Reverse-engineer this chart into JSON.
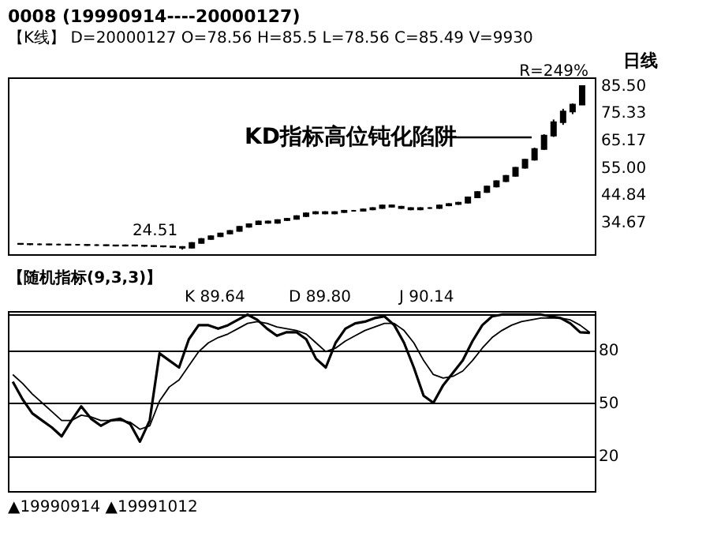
{
  "chart_data": [
    {
      "type": "candlestick",
      "title": "0008    (19990914----20000127)",
      "subtitle": "【K线】 D=20000127  O=78.56  H=85.5  L=78.56  C=85.49  V=9930",
      "annotations": [
        "日线",
        "R=249%",
        "KD指标高位钝化陷阱",
        "24.51"
      ],
      "categories": [
        null,
        null,
        null,
        null,
        null,
        null,
        null,
        null,
        null,
        null,
        null,
        null,
        null,
        null,
        null,
        null,
        null,
        null,
        null,
        null,
        null,
        null,
        null,
        null,
        null,
        null,
        null,
        null,
        null,
        null,
        null,
        null,
        null,
        null,
        null,
        null,
        null,
        null,
        null,
        null,
        null,
        null,
        null,
        null,
        null,
        null,
        null,
        null,
        null,
        null,
        null,
        null,
        null,
        null,
        null,
        null,
        null,
        null,
        null,
        null
      ],
      "color": "#000000",
      "ohlc": [
        [
          26.7,
          26.9,
          26.3,
          26.6
        ],
        [
          26.6,
          26.8,
          26.2,
          26.5
        ],
        [
          26.5,
          26.8,
          26.2,
          26.5
        ],
        [
          26.5,
          26.7,
          26.1,
          26.4
        ],
        [
          26.4,
          26.7,
          26.1,
          26.4
        ],
        [
          26.4,
          26.6,
          26.0,
          26.3
        ],
        [
          26.3,
          26.6,
          26.0,
          26.3
        ],
        [
          26.3,
          26.5,
          25.9,
          26.2
        ],
        [
          26.2,
          26.5,
          25.9,
          26.2
        ],
        [
          26.2,
          26.4,
          25.8,
          26.1
        ],
        [
          26.1,
          26.3,
          25.7,
          26.0
        ],
        [
          26.0,
          26.4,
          25.7,
          26.1
        ],
        [
          26.1,
          26.3,
          25.7,
          26.0
        ],
        [
          26.0,
          26.2,
          25.6,
          25.9
        ],
        [
          25.9,
          26.1,
          25.5,
          25.8
        ],
        [
          25.8,
          26.0,
          25.4,
          25.7
        ],
        [
          25.7,
          25.9,
          25.2,
          25.5
        ],
        [
          25.5,
          25.8,
          24.51,
          25.2
        ],
        [
          25.2,
          27.3,
          25.0,
          27.0
        ],
        [
          27.0,
          28.8,
          26.8,
          28.5
        ],
        [
          28.5,
          29.8,
          28.2,
          29.5
        ],
        [
          29.5,
          30.8,
          29.2,
          30.5
        ],
        [
          30.5,
          31.8,
          30.2,
          31.5
        ],
        [
          31.5,
          33.3,
          31.2,
          33.0
        ],
        [
          33.0,
          34.3,
          32.7,
          34.0
        ],
        [
          34.0,
          35.3,
          33.7,
          35.0
        ],
        [
          35.0,
          35.3,
          34.2,
          34.5
        ],
        [
          34.5,
          35.8,
          34.2,
          35.5
        ],
        [
          35.5,
          36.3,
          35.2,
          36.0
        ],
        [
          36.0,
          37.3,
          35.7,
          37.0
        ],
        [
          37.0,
          38.3,
          36.7,
          38.0
        ],
        [
          38.0,
          38.8,
          37.7,
          38.5
        ],
        [
          38.5,
          38.8,
          37.7,
          38.0
        ],
        [
          38.0,
          38.8,
          37.7,
          38.5
        ],
        [
          38.5,
          39.3,
          38.2,
          39.0
        ],
        [
          39.0,
          39.3,
          38.7,
          39.0
        ],
        [
          39.0,
          39.8,
          38.7,
          39.5
        ],
        [
          39.5,
          40.3,
          39.2,
          40.0
        ],
        [
          40.0,
          41.3,
          39.7,
          41.0
        ],
        [
          41.0,
          41.3,
          40.2,
          40.5
        ],
        [
          40.5,
          40.8,
          39.7,
          40.0
        ],
        [
          40.0,
          40.3,
          39.2,
          39.5
        ],
        [
          39.5,
          40.3,
          39.2,
          40.0
        ],
        [
          40.0,
          40.3,
          39.7,
          40.0
        ],
        [
          40.0,
          41.3,
          39.7,
          41.0
        ],
        [
          41.0,
          41.8,
          40.7,
          41.5
        ],
        [
          41.5,
          42.3,
          41.2,
          42.0
        ],
        [
          42.0,
          44.3,
          41.7,
          44.0
        ],
        [
          44.0,
          46.3,
          43.7,
          46.0
        ],
        [
          46.0,
          48.3,
          45.7,
          48.0
        ],
        [
          48.0,
          50.3,
          47.7,
          50.0
        ],
        [
          50.0,
          52.3,
          49.7,
          52.0
        ],
        [
          52.0,
          55.3,
          51.7,
          55.0
        ],
        [
          55.0,
          58.3,
          54.7,
          58.0
        ],
        [
          58.0,
          62.5,
          57.7,
          62.0
        ],
        [
          62.0,
          67.5,
          61.7,
          67.0
        ],
        [
          67.0,
          73.0,
          66.5,
          72.0
        ],
        [
          72.0,
          77.0,
          71.0,
          76.0
        ],
        [
          76.0,
          79.0,
          75.0,
          78.56
        ],
        [
          78.56,
          85.5,
          78.56,
          85.49
        ]
      ],
      "ylim": [
        22.8,
        88.7
      ],
      "yticks": [
        {
          "value": 85.5,
          "label": "85.50"
        },
        {
          "value": 75.33,
          "label": "75.33"
        },
        {
          "value": 65.17,
          "label": "65.17"
        },
        {
          "value": 55,
          "label": "55.00"
        },
        {
          "value": 44.84,
          "label": "44.84"
        },
        {
          "value": 34.67,
          "label": "34.67"
        }
      ],
      "grid": false
    },
    {
      "type": "line",
      "title": "【随机指标(9,3,3)】",
      "annotations": [
        "K 89.64",
        "D 89.80",
        "J 90.14",
        "▲19990914 ▲19991012"
      ],
      "categories": [
        null,
        null,
        null,
        null,
        null,
        null,
        null,
        null,
        null,
        null,
        null,
        null,
        null,
        null,
        null,
        null,
        null,
        null,
        null,
        null,
        null,
        null,
        null,
        null,
        null,
        null,
        null,
        null,
        null,
        null,
        null,
        null,
        null,
        null,
        null,
        null,
        null,
        null,
        null,
        null,
        null,
        null,
        null,
        null,
        null,
        null,
        null,
        null,
        null,
        null,
        null,
        null,
        null,
        null,
        null,
        null,
        null,
        null,
        null,
        null
      ],
      "series": [
        {
          "color": "#000000",
          "values": [
            62,
            52,
            44,
            40,
            36,
            31,
            40,
            48,
            41,
            37,
            40,
            41,
            38,
            28,
            40,
            78,
            74,
            70,
            86,
            94,
            94,
            92,
            94,
            97,
            100,
            97,
            92,
            88,
            90,
            90,
            86,
            75,
            70,
            84,
            92,
            95,
            96,
            98,
            99,
            94,
            84,
            70,
            54,
            50,
            60,
            67,
            74,
            85,
            94,
            99,
            100,
            100,
            100,
            100,
            100,
            99,
            98,
            95,
            90,
            89.64
          ]
        },
        {
          "color": "#000000",
          "values": [
            66,
            61,
            55,
            50,
            45,
            40,
            40,
            43,
            42,
            40,
            40,
            40,
            39,
            35,
            37,
            51,
            59,
            63,
            71,
            79,
            84,
            87,
            89,
            92,
            95,
            96,
            95,
            93,
            92,
            91,
            89,
            84,
            79,
            81,
            85,
            88,
            91,
            93,
            95,
            95,
            91,
            84,
            74,
            66,
            64,
            65,
            68,
            74,
            81,
            87,
            91,
            94,
            96,
            97,
            98,
            98,
            98,
            97,
            94,
            89.8
          ]
        }
      ],
      "ylim": [
        0,
        102
      ],
      "yticks": [
        {
          "value": 100,
          "label": null
        },
        80,
        50,
        20
      ],
      "grid": "y",
      "marker": "none",
      "line_style": "solid"
    }
  ]
}
